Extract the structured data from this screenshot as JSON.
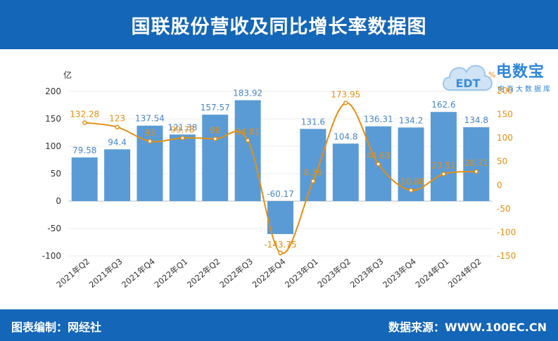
{
  "header": {
    "title": "国联股份营收及同比增长率数据图"
  },
  "footer": {
    "editor": "图表编制：网经社",
    "source": "数据来源：WWW.100EC.CN"
  },
  "logo": {
    "brand_text": "电数宝",
    "sub_text": "电商大数据库",
    "icon_text": "EDT"
  },
  "colors": {
    "bar": "#5b9bd5",
    "line": "#e38f12",
    "header_bg": "#1466b8"
  },
  "chart_data": {
    "type": "bar+line",
    "categories": [
      "2021年Q2",
      "2021年Q3",
      "2021年Q4",
      "2022年Q1",
      "2022年Q2",
      "2022年Q3",
      "2022年Q4",
      "2023年Q1",
      "2023年Q2",
      "2023年Q3",
      "2023年Q4",
      "2024年Q1",
      "2024年Q2"
    ],
    "series": [
      {
        "name": "营收",
        "type": "bar",
        "axis": "left",
        "values": [
          79.58,
          94.4,
          137.54,
          121.38,
          157.57,
          183.92,
          -60.17,
          131.6,
          104.8,
          136.31,
          134.2,
          162.6,
          134.8
        ],
        "labels": [
          "79.58",
          "94.4",
          "137.54",
          "121.38",
          "157.57",
          "183.92",
          "-60.17",
          "131.6",
          "104.8",
          "136.31",
          "134.2",
          "162.6",
          "134.8"
        ]
      },
      {
        "name": "同比增长率",
        "type": "line",
        "axis": "right",
        "values": [
          132.28,
          123,
          93,
          99.78,
          98,
          94.81,
          -143.75,
          8.39,
          173.95,
          44.63,
          -10.88,
          23.51,
          28.71
        ],
        "labels": [
          "132.28",
          "123",
          "93",
          "99.78",
          "98",
          "94.81",
          "-143.75",
          "8.39",
          "173.95",
          "44.63",
          "-10.88",
          "23.51",
          "28.71"
        ]
      }
    ],
    "y_left": {
      "label": "亿",
      "min": -100,
      "max": 200,
      "ticks": [
        -100,
        -50,
        0,
        50,
        100,
        150,
        200
      ]
    },
    "y_right": {
      "label": "%",
      "min": -150,
      "max": 200,
      "ticks": [
        -150,
        -100,
        -50,
        0,
        50,
        100,
        150,
        200
      ]
    },
    "grid": true
  }
}
